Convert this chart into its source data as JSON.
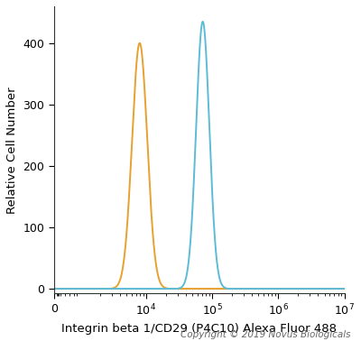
{
  "title": "",
  "xlabel": "Integrin beta 1/CD29 (P4C10) Alexa Fluor 488",
  "ylabel": "Relative Cell Number",
  "copyright": "Copyright © 2019 Novus Biologicals",
  "orange_peak_x": 8000,
  "orange_peak_y": 400,
  "orange_sigma": 0.115,
  "blue_peak_x": 72000,
  "blue_peak_y": 435,
  "blue_sigma": 0.1,
  "orange_color": "#E8A030",
  "blue_color": "#5BBCD6",
  "bg_color": "#FFFFFF",
  "plot_bg_color": "#FFFFFF",
  "xlim_right": 10000000.0,
  "ylim_bottom": -8,
  "ylim_top": 460,
  "yticks": [
    0,
    100,
    200,
    300,
    400
  ],
  "xtick_labels": [
    "0",
    "10$^4$",
    "10$^5$",
    "10$^6$",
    "10$^7$"
  ],
  "xtick_positions": [
    0,
    10000,
    100000,
    1000000,
    10000000
  ],
  "linewidth": 1.4,
  "xlabel_fontsize": 9.5,
  "ylabel_fontsize": 9.5,
  "tick_fontsize": 9,
  "copyright_fontsize": 7.5,
  "linthresh": 500,
  "linscale": 0.08
}
